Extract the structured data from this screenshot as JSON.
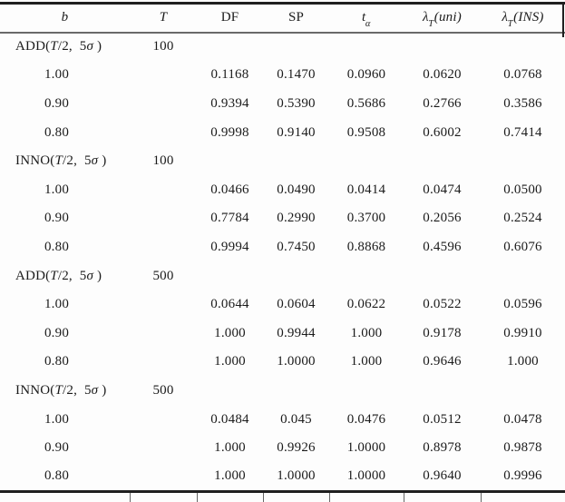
{
  "table": {
    "headers": {
      "b": "b",
      "T": "T",
      "DF": "DF",
      "SP": "SP",
      "t_alpha": {
        "base": "t",
        "sub": "α"
      },
      "lambda_uni": {
        "base": "λ",
        "sub": "T",
        "rest": "(uni)"
      },
      "lambda_ins": {
        "base": "λ",
        "sub": "T",
        "rest": "(INS)"
      }
    },
    "group_label_parts": {
      "open": "(",
      "it1": "T",
      "mid": "/2,  5",
      "it2": "σ",
      "close": " )"
    },
    "rows": [
      {
        "type": "group",
        "name": "ADD",
        "T": "100"
      },
      {
        "type": "data",
        "b": "1.00",
        "v": [
          "0.1168",
          "0.1470",
          "0.0960",
          "0.0620",
          "0.0768"
        ]
      },
      {
        "type": "data",
        "b": "0.90",
        "v": [
          "0.9394",
          "0.5390",
          "0.5686",
          "0.2766",
          "0.3586"
        ]
      },
      {
        "type": "data",
        "b": "0.80",
        "v": [
          "0.9998",
          "0.9140",
          "0.9508",
          "0.6002",
          "0.7414"
        ]
      },
      {
        "type": "group",
        "name": "INNO",
        "T": "100"
      },
      {
        "type": "data",
        "b": "1.00",
        "v": [
          "0.0466",
          "0.0490",
          "0.0414",
          "0.0474",
          "0.0500"
        ]
      },
      {
        "type": "data",
        "b": "0.90",
        "v": [
          "0.7784",
          "0.2990",
          "0.3700",
          "0.2056",
          "0.2524"
        ]
      },
      {
        "type": "data",
        "b": "0.80",
        "v": [
          "0.9994",
          "0.7450",
          "0.8868",
          "0.4596",
          "0.6076"
        ]
      },
      {
        "type": "group",
        "name": "ADD",
        "T": "500"
      },
      {
        "type": "data",
        "b": "1.00",
        "v": [
          "0.0644",
          "0.0604",
          "0.0622",
          "0.0522",
          "0.0596"
        ]
      },
      {
        "type": "data",
        "b": "0.90",
        "v": [
          "1.000",
          "0.9944",
          "1.000",
          "0.9178",
          "0.9910"
        ]
      },
      {
        "type": "data",
        "b": "0.80",
        "v": [
          "1.000",
          "1.0000",
          "1.000",
          "0.9646",
          "1.000"
        ]
      },
      {
        "type": "group",
        "name": "INNO",
        "T": "500"
      },
      {
        "type": "data",
        "b": "1.00",
        "v": [
          "0.0484",
          "0.045",
          "0.0476",
          "0.0512",
          "0.0478"
        ]
      },
      {
        "type": "data",
        "b": "0.90",
        "v": [
          "1.000",
          "0.9926",
          "1.0000",
          "0.8978",
          "0.9878"
        ]
      },
      {
        "type": "data",
        "b": "0.80",
        "v": [
          "1.000",
          "1.0000",
          "1.0000",
          "0.9640",
          "0.9996"
        ]
      }
    ]
  },
  "colors": {
    "text": "#1b1b1b",
    "rule_heavy": "#1f1f1f",
    "rule_light": "#6a6a6a",
    "background": "#fdfdfd"
  }
}
